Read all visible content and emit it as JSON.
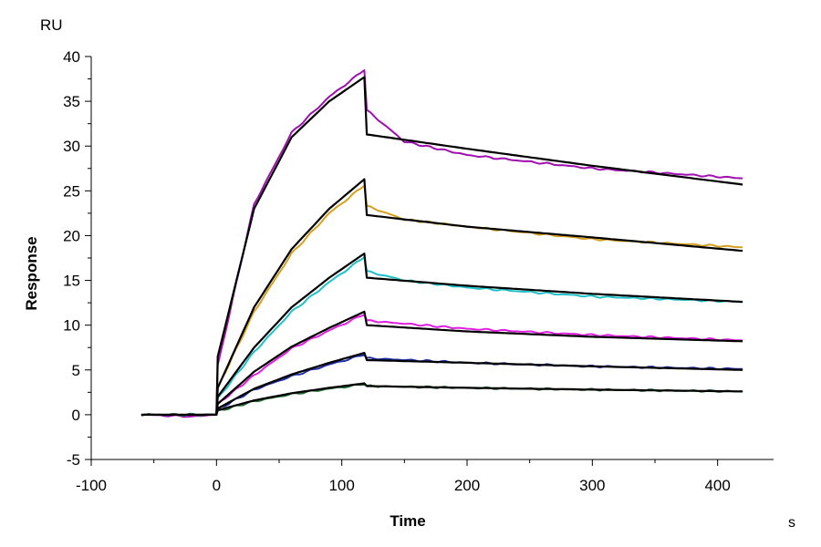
{
  "chart_data": {
    "type": "line",
    "title": "",
    "xlabel": "Time",
    "ylabel": "Response",
    "y_unit": "RU",
    "x_unit": "s",
    "xlim": [
      -100,
      450
    ],
    "ylim": [
      -5,
      40
    ],
    "x_ticks": [
      -100,
      0,
      100,
      200,
      300,
      400
    ],
    "y_ticks": [
      -5,
      0,
      5,
      10,
      15,
      20,
      25,
      30,
      35,
      40
    ],
    "grid": false,
    "legend": "none",
    "injection_start": 0,
    "injection_end": 118,
    "series": [
      {
        "color": "#a010b0",
        "kind": "measured",
        "values": [
          [
            -60,
            0
          ],
          [
            -20,
            -0.2
          ],
          [
            0,
            0
          ],
          [
            1,
            5.5
          ],
          [
            30,
            23.5
          ],
          [
            60,
            31.5
          ],
          [
            90,
            35.5
          ],
          [
            118,
            38.5
          ],
          [
            120,
            34
          ],
          [
            150,
            30.5
          ],
          [
            200,
            29
          ],
          [
            300,
            27.5
          ],
          [
            420,
            26.4
          ]
        ]
      },
      {
        "color": "#d4a020",
        "kind": "measured",
        "values": [
          [
            -60,
            0
          ],
          [
            0,
            0
          ],
          [
            1,
            3
          ],
          [
            30,
            11.5
          ],
          [
            60,
            18
          ],
          [
            90,
            22.5
          ],
          [
            118,
            25.6
          ],
          [
            120,
            23.3
          ],
          [
            150,
            21.8
          ],
          [
            200,
            21
          ],
          [
            300,
            19.6
          ],
          [
            420,
            18.7
          ]
        ]
      },
      {
        "color": "#20c0c8",
        "kind": "measured",
        "values": [
          [
            -60,
            0
          ],
          [
            0,
            0
          ],
          [
            1,
            1.8
          ],
          [
            30,
            7
          ],
          [
            60,
            11.5
          ],
          [
            90,
            14.8
          ],
          [
            118,
            17.6
          ],
          [
            120,
            16
          ],
          [
            150,
            15
          ],
          [
            200,
            14.2
          ],
          [
            300,
            13.2
          ],
          [
            420,
            12.6
          ]
        ]
      },
      {
        "color": "#e020e0",
        "kind": "measured",
        "values": [
          [
            -60,
            0
          ],
          [
            0,
            0
          ],
          [
            1,
            1.2
          ],
          [
            30,
            4.4
          ],
          [
            60,
            7.4
          ],
          [
            90,
            9.4
          ],
          [
            118,
            11.2
          ],
          [
            120,
            10.5
          ],
          [
            200,
            9.6
          ],
          [
            300,
            8.9
          ],
          [
            420,
            8.3
          ]
        ]
      },
      {
        "color": "#2030a0",
        "kind": "measured",
        "values": [
          [
            -60,
            0
          ],
          [
            0,
            0
          ],
          [
            1,
            0.6
          ],
          [
            30,
            2.8
          ],
          [
            60,
            4.3
          ],
          [
            90,
            5.6
          ],
          [
            118,
            6.7
          ],
          [
            120,
            6.3
          ],
          [
            200,
            5.8
          ],
          [
            300,
            5.4
          ],
          [
            420,
            5.1
          ]
        ]
      },
      {
        "color": "#207030",
        "kind": "measured",
        "values": [
          [
            -60,
            0
          ],
          [
            0,
            0
          ],
          [
            1,
            0.4
          ],
          [
            30,
            1.5
          ],
          [
            60,
            2.3
          ],
          [
            90,
            2.9
          ],
          [
            118,
            3.4
          ],
          [
            120,
            3.2
          ],
          [
            200,
            3
          ],
          [
            300,
            2.8
          ],
          [
            420,
            2.6
          ]
        ]
      },
      {
        "color": "#000000",
        "kind": "fit",
        "values": [
          [
            0,
            0
          ],
          [
            1,
            6.5
          ],
          [
            30,
            23
          ],
          [
            60,
            31
          ],
          [
            90,
            35
          ],
          [
            118,
            37.7
          ],
          [
            120,
            31.3
          ],
          [
            200,
            29.7
          ],
          [
            300,
            27.8
          ],
          [
            420,
            25.7
          ]
        ]
      },
      {
        "color": "#000000",
        "kind": "fit",
        "values": [
          [
            0,
            0
          ],
          [
            1,
            3
          ],
          [
            30,
            12
          ],
          [
            60,
            18.5
          ],
          [
            90,
            23
          ],
          [
            118,
            26.3
          ],
          [
            120,
            22.3
          ],
          [
            200,
            21
          ],
          [
            300,
            19.8
          ],
          [
            420,
            18.3
          ]
        ]
      },
      {
        "color": "#000000",
        "kind": "fit",
        "values": [
          [
            0,
            0
          ],
          [
            1,
            2
          ],
          [
            30,
            7.5
          ],
          [
            60,
            12
          ],
          [
            90,
            15.3
          ],
          [
            118,
            18
          ],
          [
            120,
            15.3
          ],
          [
            200,
            14.4
          ],
          [
            300,
            13.5
          ],
          [
            420,
            12.6
          ]
        ]
      },
      {
        "color": "#000000",
        "kind": "fit",
        "values": [
          [
            0,
            0
          ],
          [
            1,
            1.2
          ],
          [
            30,
            4.8
          ],
          [
            60,
            7.6
          ],
          [
            90,
            9.7
          ],
          [
            118,
            11.5
          ],
          [
            120,
            10
          ],
          [
            200,
            9.3
          ],
          [
            300,
            8.7
          ],
          [
            420,
            8.2
          ]
        ]
      },
      {
        "color": "#000000",
        "kind": "fit",
        "values": [
          [
            0,
            0
          ],
          [
            1,
            0.7
          ],
          [
            30,
            2.9
          ],
          [
            60,
            4.5
          ],
          [
            90,
            5.8
          ],
          [
            118,
            6.9
          ],
          [
            120,
            6.1
          ],
          [
            200,
            5.8
          ],
          [
            300,
            5.4
          ],
          [
            420,
            5
          ]
        ]
      },
      {
        "color": "#000000",
        "kind": "fit",
        "values": [
          [
            -60,
            0
          ],
          [
            0,
            0
          ],
          [
            1,
            0.5
          ],
          [
            30,
            1.6
          ],
          [
            60,
            2.4
          ],
          [
            90,
            3
          ],
          [
            118,
            3.5
          ],
          [
            120,
            3.2
          ],
          [
            200,
            3
          ],
          [
            300,
            2.8
          ],
          [
            420,
            2.6
          ]
        ]
      }
    ]
  }
}
